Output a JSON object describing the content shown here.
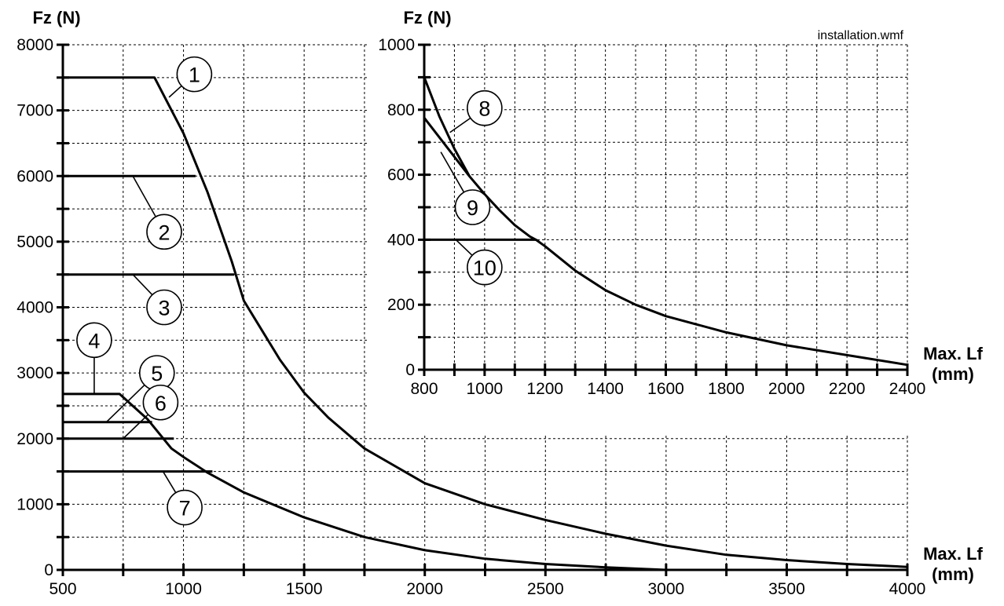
{
  "file_label": "installation.wmf",
  "colors": {
    "ink": "#000000",
    "background": "#ffffff"
  },
  "chart_data": [
    {
      "type": "line",
      "ylabel": "Fz (N)",
      "xlabel_line1": "Max. Lf",
      "xlabel_line2": "(mm)",
      "xlim": [
        500,
        4000
      ],
      "ylim": [
        0,
        8000
      ],
      "x_ticks": [
        500,
        1000,
        1500,
        2000,
        2500,
        3000,
        3500,
        4000
      ],
      "y_ticks": [
        0,
        1000,
        2000,
        3000,
        4000,
        5000,
        6000,
        7000,
        8000
      ],
      "grid": true,
      "series": [
        {
          "callout": "1",
          "x": [
            500,
            880,
            1000,
            1100,
            1200,
            1250,
            1300,
            1400,
            1500,
            1600,
            1750,
            2000,
            2250,
            2500,
            2750,
            3000,
            3250,
            3500,
            3750,
            4000
          ],
          "y": [
            7500,
            7500,
            6650,
            5750,
            4700,
            4100,
            3800,
            3200,
            2700,
            2320,
            1850,
            1320,
            1000,
            760,
            550,
            370,
            230,
            150,
            90,
            45
          ]
        },
        {
          "callout": "2",
          "x": [
            500,
            1050
          ],
          "y": [
            6000,
            6000
          ]
        },
        {
          "callout": "3",
          "x": [
            500,
            1210
          ],
          "y": [
            4500,
            4500
          ]
        },
        {
          "callout": "4",
          "x": [
            500,
            735,
            850,
            950,
            1000,
            1100,
            1250,
            1500,
            1750,
            2000,
            2250,
            2500,
            2750,
            3000
          ],
          "y": [
            2680,
            2680,
            2300,
            1850,
            1720,
            1480,
            1180,
            800,
            500,
            300,
            170,
            90,
            40,
            0
          ]
        },
        {
          "callout": "5",
          "x": [
            500,
            870
          ],
          "y": [
            2250,
            2250
          ]
        },
        {
          "callout": "6",
          "x": [
            500,
            960
          ],
          "y": [
            2000,
            2000
          ]
        },
        {
          "callout": "7",
          "x": [
            500,
            1120
          ],
          "y": [
            1500,
            1500
          ]
        }
      ],
      "callouts": [
        {
          "label": "1",
          "at": [
            1045,
            7550
          ],
          "anchor": [
            940,
            7200
          ]
        },
        {
          "label": "2",
          "at": [
            920,
            5150
          ],
          "anchor": [
            790,
            6000
          ]
        },
        {
          "label": "3",
          "at": [
            920,
            4000
          ],
          "anchor": [
            790,
            4500
          ]
        },
        {
          "label": "4",
          "at": [
            630,
            3500
          ],
          "anchor": [
            630,
            2680
          ]
        },
        {
          "label": "5",
          "at": [
            890,
            3000
          ],
          "anchor": [
            680,
            2250
          ]
        },
        {
          "label": "6",
          "at": [
            905,
            2550
          ],
          "anchor": [
            750,
            2000
          ]
        },
        {
          "label": "7",
          "at": [
            1005,
            950
          ],
          "anchor": [
            915,
            1500
          ]
        }
      ]
    },
    {
      "type": "line",
      "ylabel": "Fz (N)",
      "xlabel_line1": "Max. Lf",
      "xlabel_line2": "(mm)",
      "xlim": [
        800,
        2400
      ],
      "ylim": [
        0,
        1000
      ],
      "x_ticks": [
        800,
        1000,
        1200,
        1400,
        1600,
        1800,
        2000,
        2200,
        2400
      ],
      "y_ticks": [
        0,
        200,
        400,
        600,
        800,
        1000
      ],
      "grid": true,
      "series": [
        {
          "callout": "8",
          "x": [
            800,
            850,
            900,
            950,
            1000,
            1050,
            1100,
            1150,
            1170,
            1200,
            1300,
            1400,
            1500,
            1600,
            1800,
            2000,
            2200,
            2400
          ],
          "y": [
            900,
            780,
            680,
            595,
            540,
            490,
            445,
            410,
            400,
            380,
            305,
            245,
            200,
            165,
            115,
            75,
            45,
            15
          ]
        },
        {
          "callout": "9",
          "x": [
            800,
            950
          ],
          "y": [
            775,
            595
          ]
        },
        {
          "callout": "10",
          "x": [
            800,
            1170
          ],
          "y": [
            400,
            400
          ]
        }
      ],
      "callouts": [
        {
          "label": "8",
          "at": [
            1000,
            805
          ],
          "anchor": [
            885,
            730
          ]
        },
        {
          "label": "9",
          "at": [
            960,
            500
          ],
          "anchor": [
            855,
            670
          ]
        },
        {
          "label": "10",
          "at": [
            1000,
            315
          ],
          "anchor": [
            905,
            400
          ]
        }
      ]
    }
  ]
}
